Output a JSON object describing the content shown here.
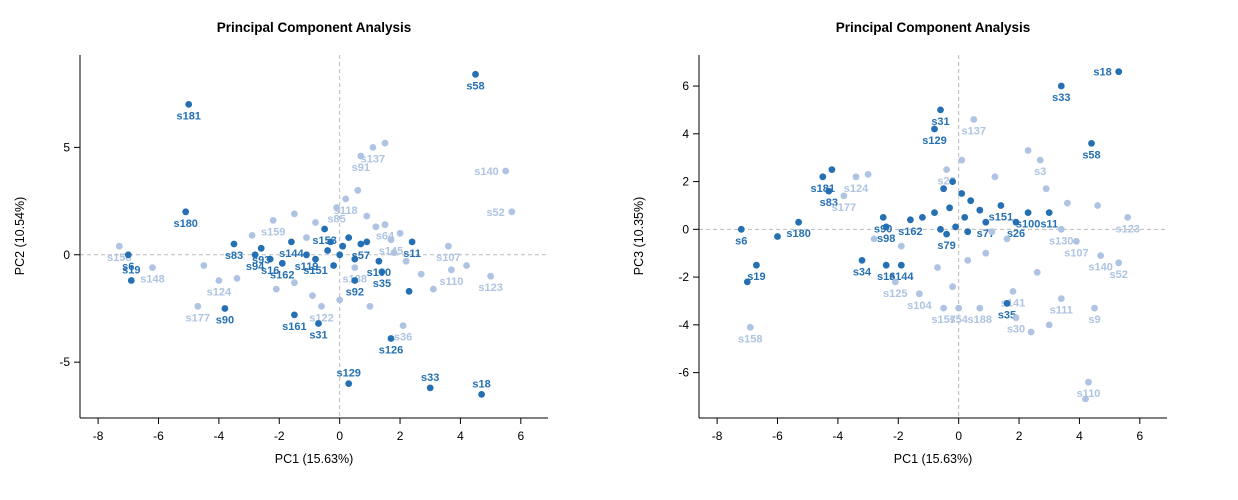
{
  "figure": {
    "background": "#ffffff"
  },
  "chart_data": [
    {
      "type": "scatter",
      "title": "Principal Component Analysis",
      "xlabel": "PC1 (15.63%)",
      "ylabel": "PC2 (10.54%)",
      "xlim": [
        -8.6,
        6.9
      ],
      "ylim": [
        -7.6,
        9.3
      ],
      "xticks": [
        -8,
        -6,
        -4,
        -2,
        0,
        2,
        4,
        6
      ],
      "yticks": [
        -5,
        0,
        5
      ],
      "grid": "dashed-zero-lines",
      "legend": "none",
      "colors": {
        "dark": "#2470b3",
        "light": "#aec4e2",
        "zero_line": "#bbbbbb",
        "axis": "#000000"
      },
      "points": [
        [
          4.5,
          8.4,
          "d",
          "s58",
          "b"
        ],
        [
          -5.0,
          7.0,
          "d",
          "s181",
          "b"
        ],
        [
          1.1,
          5.0,
          "l",
          "s137",
          "b"
        ],
        [
          0.7,
          4.6,
          "l",
          "s91",
          "b"
        ],
        [
          5.5,
          3.9,
          "l",
          "s140",
          "l"
        ],
        [
          5.7,
          2.0,
          "l",
          "s52",
          "l"
        ],
        [
          -5.1,
          2.0,
          "d",
          "s180",
          "b"
        ],
        [
          0.2,
          2.6,
          "l",
          "s118",
          "b"
        ],
        [
          -0.1,
          2.2,
          "l",
          "s85",
          "b"
        ],
        [
          -2.2,
          1.6,
          "l",
          "s159",
          "b"
        ],
        [
          1.5,
          1.4,
          "l",
          "s64",
          "b"
        ],
        [
          -0.5,
          1.2,
          "d",
          "s153",
          "b"
        ],
        [
          1.7,
          0.7,
          "l",
          "s145",
          "b"
        ],
        [
          2.4,
          0.6,
          "d",
          "s11",
          "b"
        ],
        [
          3.6,
          0.4,
          "l",
          "s107",
          "b"
        ],
        [
          -7.3,
          0.4,
          "l",
          "s158",
          "b"
        ],
        [
          -7.0,
          0.0,
          "d",
          "s6",
          "b"
        ],
        [
          -6.9,
          -1.2,
          "d",
          "s19",
          "a"
        ],
        [
          -6.2,
          -0.6,
          "l",
          "s148",
          "b"
        ],
        [
          -3.5,
          0.5,
          "d",
          "s83",
          "b"
        ],
        [
          -2.6,
          0.3,
          "d",
          "s93",
          "b"
        ],
        [
          -2.8,
          0.0,
          "d",
          "s94",
          "b"
        ],
        [
          -2.3,
          -0.2,
          "d",
          "s16",
          "b"
        ],
        [
          -1.9,
          -0.4,
          "d",
          "s162",
          "b"
        ],
        [
          -1.6,
          0.6,
          "d",
          "s144",
          "b"
        ],
        [
          -1.1,
          0.0,
          "d",
          "s119",
          "b"
        ],
        [
          -0.8,
          -0.2,
          "d",
          "s151",
          "b"
        ],
        [
          0.7,
          0.5,
          "d",
          "s57",
          "b"
        ],
        [
          1.3,
          -0.3,
          "d",
          "s100",
          "b"
        ],
        [
          1.4,
          -0.8,
          "d",
          "s35",
          "b"
        ],
        [
          0.5,
          -0.6,
          "l",
          "s188",
          "b"
        ],
        [
          3.7,
          -0.7,
          "l",
          "s110",
          "b"
        ],
        [
          5.0,
          -1.0,
          "l",
          "s123",
          "b"
        ],
        [
          0.5,
          -1.2,
          "d",
          "s92",
          "b"
        ],
        [
          -4.0,
          -1.2,
          "l",
          "s124",
          "b"
        ],
        [
          -4.7,
          -2.4,
          "l",
          "s177",
          "b"
        ],
        [
          -3.8,
          -2.5,
          "d",
          "s90",
          "b"
        ],
        [
          -0.6,
          -2.4,
          "l",
          "s122",
          "b"
        ],
        [
          -1.5,
          -2.8,
          "d",
          "s161",
          "b"
        ],
        [
          -0.7,
          -3.2,
          "d",
          "s31",
          "b"
        ],
        [
          2.1,
          -3.3,
          "l",
          "s36",
          "b"
        ],
        [
          1.7,
          -3.9,
          "d",
          "s126",
          "b"
        ],
        [
          0.3,
          -6.0,
          "d",
          "s129",
          "a"
        ],
        [
          3.0,
          -6.2,
          "d",
          "s33",
          "a"
        ],
        [
          4.7,
          -6.5,
          "d",
          "s18",
          "a"
        ],
        [
          1.5,
          5.2,
          "l"
        ],
        [
          0.6,
          3.0,
          "l"
        ],
        [
          -1.5,
          1.9,
          "l"
        ],
        [
          -0.8,
          1.5,
          "l"
        ],
        [
          0.9,
          1.8,
          "l"
        ],
        [
          1.2,
          1.3,
          "l"
        ],
        [
          2.0,
          1.0,
          "l"
        ],
        [
          -2.9,
          0.9,
          "l"
        ],
        [
          -1.1,
          0.8,
          "l"
        ],
        [
          -0.3,
          0.6,
          "d"
        ],
        [
          0.1,
          0.4,
          "d"
        ],
        [
          0.3,
          0.8,
          "d"
        ],
        [
          -0.4,
          0.2,
          "d"
        ],
        [
          0.0,
          0.0,
          "d"
        ],
        [
          0.5,
          -0.2,
          "d"
        ],
        [
          -0.2,
          -0.5,
          "d"
        ],
        [
          0.9,
          0.6,
          "d"
        ],
        [
          1.8,
          0.1,
          "l"
        ],
        [
          2.2,
          -0.3,
          "l"
        ],
        [
          2.7,
          -0.9,
          "l"
        ],
        [
          3.1,
          -1.6,
          "l"
        ],
        [
          2.3,
          -1.7,
          "d"
        ],
        [
          -1.5,
          -1.3,
          "l"
        ],
        [
          -2.1,
          -1.6,
          "l"
        ],
        [
          -0.9,
          -1.9,
          "l"
        ],
        [
          0.0,
          -2.1,
          "l"
        ],
        [
          1.0,
          -2.4,
          "l"
        ],
        [
          -3.4,
          -1.1,
          "l"
        ],
        [
          -4.5,
          -0.5,
          "l"
        ],
        [
          4.2,
          -0.5,
          "l"
        ]
      ]
    },
    {
      "type": "scatter",
      "title": "Principal Component Analysis",
      "xlabel": "PC1 (15.63%)",
      "ylabel": "PC3 (10.35%)",
      "xlim": [
        -8.6,
        6.9
      ],
      "ylim": [
        -7.9,
        7.3
      ],
      "xticks": [
        -8,
        -6,
        -4,
        -2,
        0,
        2,
        4,
        6
      ],
      "yticks": [
        -6,
        -4,
        -2,
        0,
        2,
        4,
        6
      ],
      "grid": "dashed-zero-lines",
      "legend": "none",
      "colors": {
        "dark": "#2470b3",
        "light": "#aec4e2",
        "zero_line": "#bbbbbb",
        "axis": "#000000"
      },
      "points": [
        [
          5.3,
          6.6,
          "d",
          "s18",
          "l"
        ],
        [
          3.4,
          6.0,
          "d",
          "s33",
          "b"
        ],
        [
          -0.6,
          5.0,
          "d",
          "s31",
          "b"
        ],
        [
          0.5,
          4.6,
          "l",
          "s137",
          "b"
        ],
        [
          -0.8,
          4.2,
          "d",
          "s129",
          "b"
        ],
        [
          4.4,
          3.6,
          "d",
          "s58",
          "b"
        ],
        [
          2.7,
          2.9,
          "l",
          "s3",
          "b"
        ],
        [
          -0.4,
          2.5,
          "l",
          "s28",
          "b"
        ],
        [
          -4.5,
          2.2,
          "d",
          "s181",
          "b"
        ],
        [
          -3.4,
          2.2,
          "l",
          "s124",
          "b"
        ],
        [
          -4.3,
          1.6,
          "d",
          "s83",
          "b"
        ],
        [
          -3.8,
          1.4,
          "l",
          "s177",
          "b"
        ],
        [
          1.4,
          1.0,
          "d",
          "s151",
          "b"
        ],
        [
          2.3,
          0.7,
          "d",
          "s100",
          "b"
        ],
        [
          3.0,
          0.7,
          "d",
          "s11",
          "b"
        ],
        [
          1.9,
          0.3,
          "d",
          "s26",
          "b"
        ],
        [
          0.9,
          0.3,
          "d",
          "s77",
          "b"
        ],
        [
          5.6,
          0.5,
          "l",
          "s123",
          "b"
        ],
        [
          -2.5,
          0.5,
          "d",
          "s90",
          "b"
        ],
        [
          -2.4,
          0.1,
          "d",
          "s98",
          "b"
        ],
        [
          -1.6,
          0.4,
          "d",
          "s162",
          "b"
        ],
        [
          -5.3,
          0.3,
          "d",
          "s180",
          "b"
        ],
        [
          -7.2,
          0.0,
          "d",
          "s6",
          "b"
        ],
        [
          -0.4,
          -0.2,
          "d",
          "s79",
          "b"
        ],
        [
          3.4,
          0.0,
          "l",
          "s130",
          "b"
        ],
        [
          3.9,
          -0.5,
          "l",
          "s107",
          "b"
        ],
        [
          -6.7,
          -1.5,
          "d",
          "s19",
          "b"
        ],
        [
          -3.2,
          -1.3,
          "d",
          "s34",
          "b"
        ],
        [
          -2.4,
          -1.5,
          "d",
          "s16",
          "b"
        ],
        [
          -1.9,
          -1.5,
          "d",
          "s144",
          "b"
        ],
        [
          4.7,
          -1.1,
          "l",
          "s140",
          "b"
        ],
        [
          5.3,
          -1.4,
          "l",
          "s52",
          "b"
        ],
        [
          -2.1,
          -2.2,
          "l",
          "s125",
          "b"
        ],
        [
          -1.3,
          -2.7,
          "l",
          "s104",
          "b"
        ],
        [
          1.8,
          -2.6,
          "l",
          "s141",
          "b"
        ],
        [
          3.4,
          -2.9,
          "l",
          "s111",
          "b"
        ],
        [
          1.6,
          -3.1,
          "d",
          "s35",
          "b"
        ],
        [
          4.5,
          -3.3,
          "l",
          "s9",
          "b"
        ],
        [
          -0.5,
          -3.3,
          "l",
          "s157",
          "b"
        ],
        [
          0.0,
          -3.3,
          "l",
          "s54",
          "b"
        ],
        [
          0.7,
          -3.3,
          "l",
          "s188",
          "b"
        ],
        [
          1.9,
          -3.7,
          "l",
          "s30",
          "b"
        ],
        [
          -6.9,
          -4.1,
          "l",
          "s158",
          "b"
        ],
        [
          4.3,
          -6.4,
          "l",
          "s110",
          "b"
        ],
        [
          2.3,
          3.3,
          "l"
        ],
        [
          0.1,
          2.9,
          "l"
        ],
        [
          -4.2,
          2.5,
          "d"
        ],
        [
          -3.0,
          2.3,
          "l"
        ],
        [
          -0.2,
          2.0,
          "d"
        ],
        [
          -0.5,
          1.7,
          "d"
        ],
        [
          0.1,
          1.5,
          "d"
        ],
        [
          0.4,
          1.2,
          "d"
        ],
        [
          -0.3,
          0.9,
          "d"
        ],
        [
          -0.8,
          0.7,
          "d"
        ],
        [
          -1.2,
          0.5,
          "d"
        ],
        [
          0.2,
          0.5,
          "d"
        ],
        [
          0.7,
          0.8,
          "d"
        ],
        [
          -0.1,
          0.1,
          "d"
        ],
        [
          -0.6,
          0.0,
          "d"
        ],
        [
          0.3,
          -0.1,
          "d"
        ],
        [
          1.1,
          -0.1,
          "l"
        ],
        [
          1.6,
          -0.4,
          "l"
        ],
        [
          2.9,
          1.7,
          "l"
        ],
        [
          3.6,
          1.1,
          "l"
        ],
        [
          4.6,
          1.0,
          "l"
        ],
        [
          -1.9,
          -0.7,
          "l"
        ],
        [
          -2.8,
          -0.4,
          "l"
        ],
        [
          -6.0,
          -0.3,
          "d"
        ],
        [
          -7.0,
          -2.2,
          "d"
        ],
        [
          0.9,
          -1.0,
          "l"
        ],
        [
          0.3,
          -1.3,
          "l"
        ],
        [
          -0.7,
          -1.6,
          "l"
        ],
        [
          2.6,
          -1.8,
          "l"
        ],
        [
          3.0,
          -4.0,
          "l"
        ],
        [
          2.4,
          -4.3,
          "l"
        ],
        [
          4.2,
          -7.1,
          "l"
        ],
        [
          -0.2,
          -2.4,
          "l"
        ],
        [
          1.2,
          2.2,
          "l"
        ]
      ]
    }
  ]
}
